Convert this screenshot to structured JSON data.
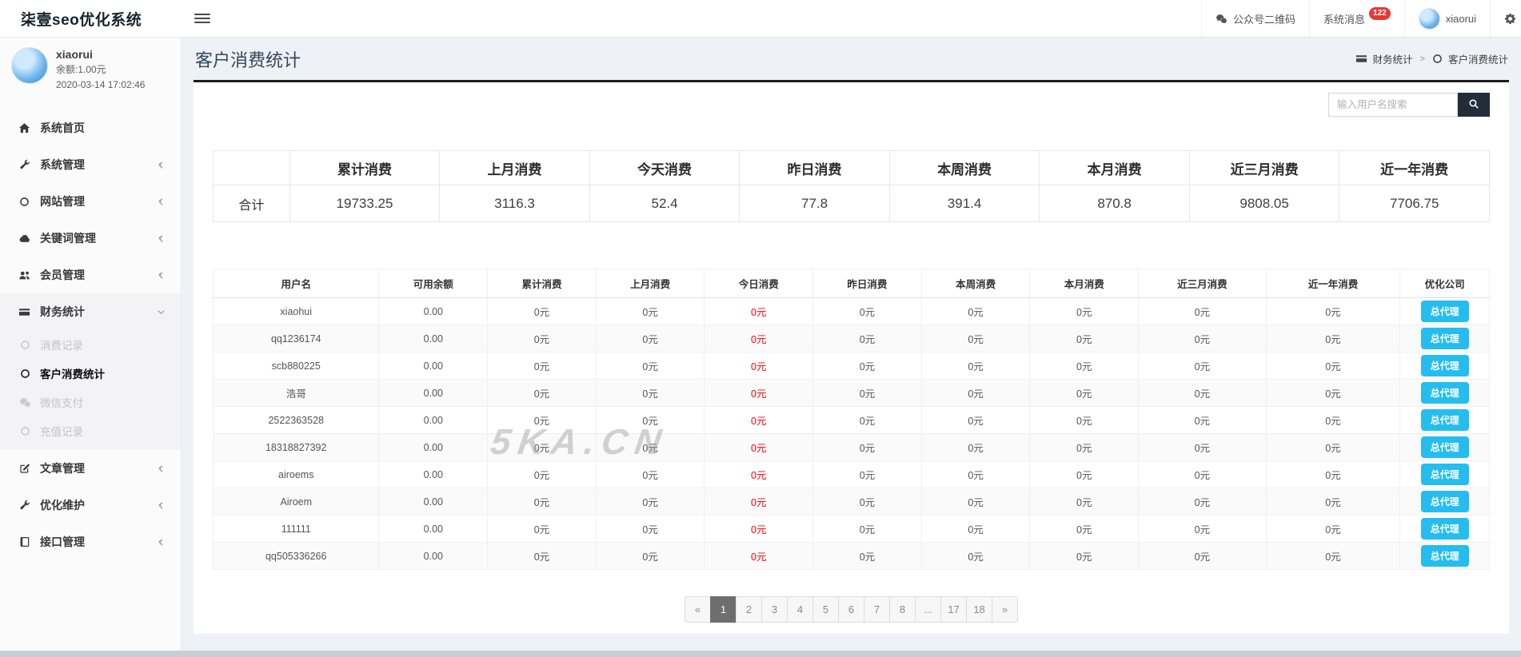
{
  "app": {
    "title": "柒壹seo优化系统"
  },
  "header": {
    "qrcode_label": "公众号二维码",
    "messages_label": "系统消息",
    "messages_badge": "122",
    "username": "xiaorui"
  },
  "sidebar": {
    "user": {
      "name": "xiaorui",
      "balance": "余额:1.00元",
      "datetime": "2020-03-14 17:02:46"
    },
    "menu": [
      {
        "icon": "home-icon",
        "label": "系统首页",
        "chevron": false
      },
      {
        "icon": "wrench-icon",
        "label": "系统管理",
        "chevron": true
      },
      {
        "icon": "circle-icon",
        "label": "网站管理",
        "chevron": true
      },
      {
        "icon": "cloud-icon",
        "label": "关键词管理",
        "chevron": true
      },
      {
        "icon": "users-icon",
        "label": "会员管理",
        "chevron": true
      },
      {
        "icon": "credit-card-icon",
        "label": "财务统计",
        "chevron": true,
        "expanded": true,
        "children": [
          {
            "icon": "circle-icon",
            "label": "消费记录",
            "active": false
          },
          {
            "icon": "circle-icon",
            "label": "客户消费统计",
            "active": true
          },
          {
            "icon": "wechat-icon",
            "label": "微信支付",
            "active": false
          },
          {
            "icon": "circle-icon",
            "label": "充值记录",
            "active": false
          }
        ]
      },
      {
        "icon": "edit-icon",
        "label": "文章管理",
        "chevron": true
      },
      {
        "icon": "tools-icon",
        "label": "优化维护",
        "chevron": true
      },
      {
        "icon": "book-icon",
        "label": "接口管理",
        "chevron": true
      }
    ]
  },
  "page": {
    "title": "客户消费统计",
    "breadcrumb": [
      {
        "icon": "credit-card-icon",
        "label": "财务统计"
      },
      {
        "icon": "circle-icon",
        "label": "客户消费统计"
      }
    ]
  },
  "search": {
    "placeholder": "输入用户名搜索"
  },
  "summary": {
    "row_label": "合计",
    "headers": [
      "累计消费",
      "上月消费",
      "今天消费",
      "昨日消费",
      "本周消费",
      "本月消费",
      "近三月消费",
      "近一年消费"
    ],
    "values": [
      "19733.25",
      "3116.3",
      "52.4",
      "77.8",
      "391.4",
      "870.8",
      "9808.05",
      "7706.75"
    ]
  },
  "table": {
    "columns": [
      "用户名",
      "可用余额",
      "累计消费",
      "上月消费",
      "今日消费",
      "昨日消费",
      "本周消费",
      "本月消费",
      "近三月消费",
      "近一年消费",
      "优化公司"
    ],
    "action_label": "总代理",
    "today_column_index": 2,
    "rows": [
      {
        "username": "xiaohui",
        "balance": "0.00",
        "values": [
          "0元",
          "0元",
          "0元",
          "0元",
          "0元",
          "0元",
          "0元",
          "0元"
        ]
      },
      {
        "username": "qq1236174",
        "balance": "0.00",
        "values": [
          "0元",
          "0元",
          "0元",
          "0元",
          "0元",
          "0元",
          "0元",
          "0元"
        ]
      },
      {
        "username": "scb880225",
        "balance": "0.00",
        "values": [
          "0元",
          "0元",
          "0元",
          "0元",
          "0元",
          "0元",
          "0元",
          "0元"
        ]
      },
      {
        "username": "浩哥",
        "balance": "0.00",
        "values": [
          "0元",
          "0元",
          "0元",
          "0元",
          "0元",
          "0元",
          "0元",
          "0元"
        ]
      },
      {
        "username": "2522363528",
        "balance": "0.00",
        "values": [
          "0元",
          "0元",
          "0元",
          "0元",
          "0元",
          "0元",
          "0元",
          "0元"
        ]
      },
      {
        "username": "18318827392",
        "balance": "0.00",
        "values": [
          "0元",
          "0元",
          "0元",
          "0元",
          "0元",
          "0元",
          "0元",
          "0元"
        ]
      },
      {
        "username": "airoems",
        "balance": "0.00",
        "values": [
          "0元",
          "0元",
          "0元",
          "0元",
          "0元",
          "0元",
          "0元",
          "0元"
        ]
      },
      {
        "username": "Airoem",
        "balance": "0.00",
        "values": [
          "0元",
          "0元",
          "0元",
          "0元",
          "0元",
          "0元",
          "0元",
          "0元"
        ]
      },
      {
        "username": "111111",
        "balance": "0.00",
        "values": [
          "0元",
          "0元",
          "0元",
          "0元",
          "0元",
          "0元",
          "0元",
          "0元"
        ]
      },
      {
        "username": "qq505336266",
        "balance": "0.00",
        "values": [
          "0元",
          "0元",
          "0元",
          "0元",
          "0元",
          "0元",
          "0元",
          "0元"
        ]
      }
    ]
  },
  "watermark": "5KA.CN",
  "pagination": {
    "items": [
      "«",
      "1",
      "2",
      "3",
      "4",
      "5",
      "6",
      "7",
      "8",
      "...",
      "17",
      "18",
      "»"
    ],
    "active": "1"
  },
  "colors": {
    "accent": "#25bdef",
    "danger": "#ff0000",
    "search_button": "#232d3a",
    "pagination_active": "#6e6e6e",
    "badge": "#e53935",
    "card_top_border": "#1c1c1c"
  }
}
